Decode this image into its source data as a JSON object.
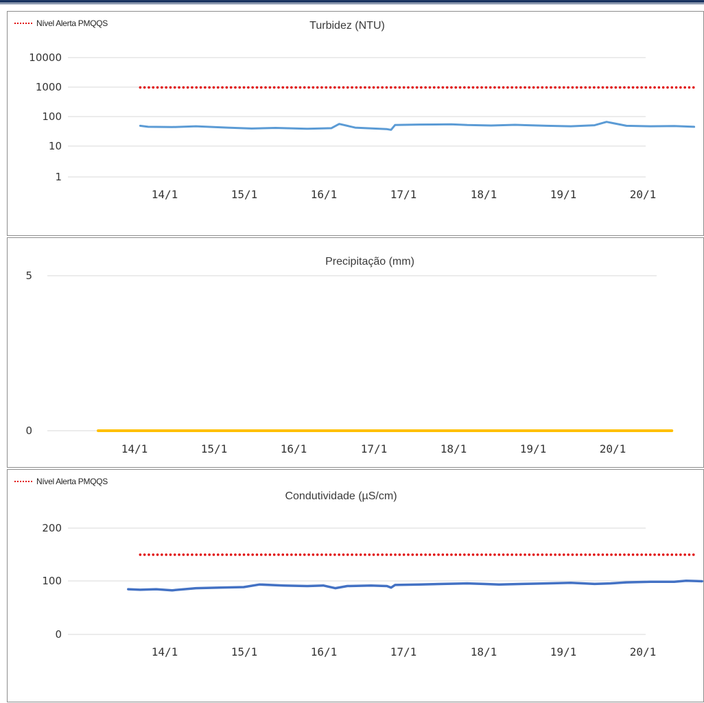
{
  "legend_label": "Nível Alerta PMQQS",
  "chart_data": [
    {
      "type": "line",
      "title": "Turbidez (NTU)",
      "xlabel": "",
      "ylabel": "",
      "yscale": "log",
      "ylim": [
        1,
        10000
      ],
      "yticks": [
        "1",
        "10",
        "100",
        "1000",
        "10000"
      ],
      "yvalues": [
        1,
        10,
        100,
        1000,
        10000
      ],
      "xticks": [
        "14/1",
        "15/1",
        "16/1",
        "17/1",
        "18/1",
        "19/1",
        "20/1"
      ],
      "xrange": [
        13.9,
        20.85
      ],
      "grid": true,
      "legend": "top-left",
      "series": [
        {
          "name": "Nível Alerta PMQQS",
          "style": "dotted",
          "color": "#e00000",
          "x": [
            13.9,
            20.85
          ],
          "y": [
            1000,
            1000
          ]
        },
        {
          "name": "",
          "style": "solid",
          "color": "#5b9bd5",
          "x": [
            13.9,
            14.0,
            14.3,
            14.6,
            15.0,
            15.3,
            15.6,
            16.0,
            16.3,
            16.4,
            16.6,
            17.0,
            17.05,
            17.1,
            17.4,
            17.8,
            18.0,
            18.3,
            18.6,
            19.0,
            19.3,
            19.6,
            19.75,
            20.0,
            20.3,
            20.6,
            20.85
          ],
          "y": [
            52,
            48,
            47,
            50,
            45,
            42,
            44,
            41,
            43,
            60,
            45,
            40,
            38,
            55,
            57,
            58,
            55,
            53,
            56,
            52,
            50,
            54,
            70,
            52,
            50,
            51,
            48
          ]
        }
      ]
    },
    {
      "type": "line",
      "title": "Precipitação (mm)",
      "xlabel": "",
      "ylabel": "",
      "ylim": [
        0,
        5
      ],
      "yticks": [
        "0",
        "5"
      ],
      "yvalues": [
        0,
        5
      ],
      "xticks": [
        "14/1",
        "15/1",
        "16/1",
        "17/1",
        "18/1",
        "19/1",
        "20/1"
      ],
      "xrange": [
        13.9,
        20.85
      ],
      "grid": true,
      "series": [
        {
          "name": "",
          "style": "solid",
          "color": "#ffc000",
          "x": [
            13.75,
            20.95
          ],
          "y": [
            0,
            0
          ]
        }
      ]
    },
    {
      "type": "line",
      "title": "Condutividade (µS/cm)",
      "xlabel": "",
      "ylabel": "",
      "ylim": [
        0,
        200
      ],
      "yticks": [
        "0",
        "100",
        "200"
      ],
      "yvalues": [
        0,
        100,
        200
      ],
      "xticks": [
        "14/1",
        "15/1",
        "16/1",
        "17/1",
        "18/1",
        "19/1",
        "20/1"
      ],
      "xrange": [
        13.9,
        20.85
      ],
      "grid": true,
      "legend": "top-left",
      "series": [
        {
          "name": "Nível Alerta PMQQS",
          "style": "dotted",
          "color": "#e00000",
          "x": [
            13.9,
            20.85
          ],
          "y": [
            150,
            150
          ]
        },
        {
          "name": "",
          "style": "solid",
          "color": "#4472c4",
          "x": [
            13.75,
            13.9,
            14.1,
            14.3,
            14.6,
            14.9,
            15.2,
            15.4,
            15.7,
            16.0,
            16.2,
            16.35,
            16.5,
            16.8,
            17.0,
            17.05,
            17.1,
            17.4,
            17.7,
            18.0,
            18.2,
            18.4,
            18.7,
            19.0,
            19.3,
            19.6,
            19.8,
            20.0,
            20.3,
            20.6,
            20.75,
            20.95
          ],
          "y": [
            85,
            84,
            85,
            83,
            87,
            88,
            89,
            94,
            92,
            91,
            92,
            87,
            91,
            92,
            91,
            88,
            93,
            94,
            95,
            96,
            95,
            94,
            95,
            96,
            97,
            95,
            96,
            98,
            99,
            99,
            101,
            100
          ]
        }
      ]
    }
  ]
}
